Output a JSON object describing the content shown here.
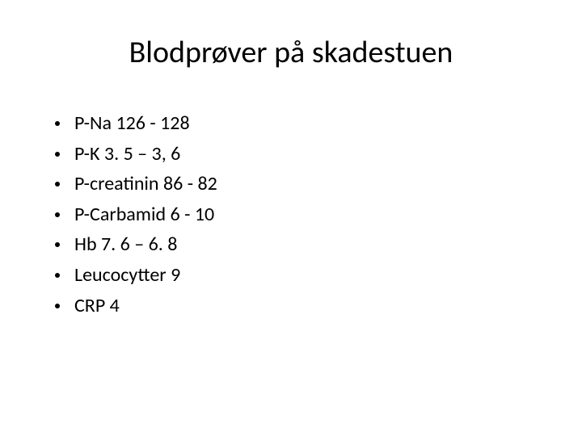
{
  "slide": {
    "title": "Blodprøver på skadestuen",
    "title_fontsize": 38,
    "title_color": "#000000",
    "background_color": "#ffffff",
    "bullets": [
      "P-Na 126 - 128",
      "P-K 3. 5 – 3, 6",
      "P-creatinin 86 - 82",
      "P-Carbamid 6 - 10",
      "Hb 7. 6 – 6. 8",
      "Leucocytter 9",
      "CRP 4"
    ],
    "bullet_fontsize": 24,
    "bullet_color": "#000000",
    "bullet_marker_color": "#000000"
  }
}
